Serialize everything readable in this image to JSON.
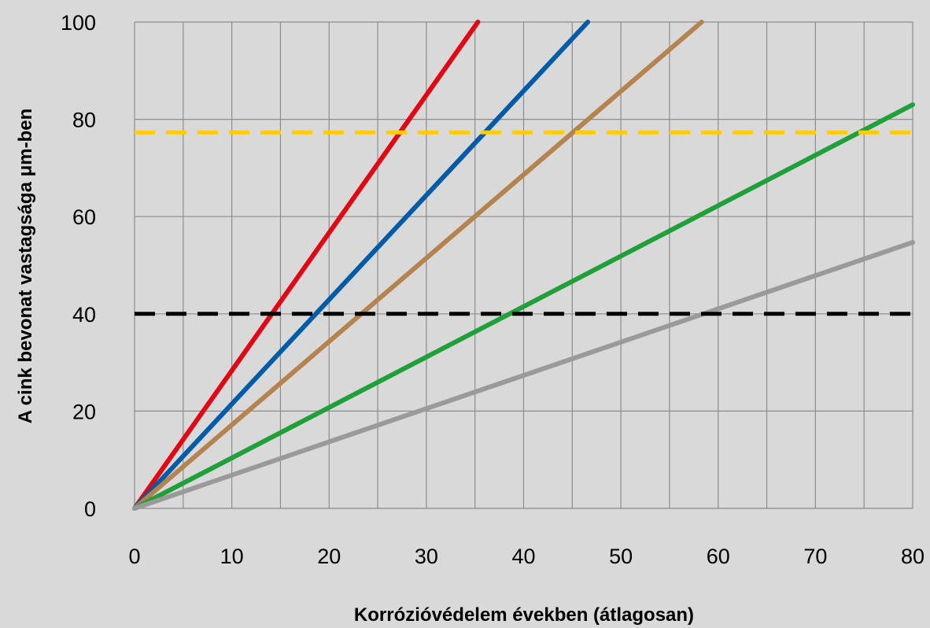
{
  "chart_data": {
    "type": "line",
    "title": "",
    "xlabel": "Korrózióvédelem években (átlagosan)",
    "ylabel": "A cink bevonat vastagsága μm-ben",
    "xlim": [
      0,
      80
    ],
    "ylim": [
      0,
      100
    ],
    "x_ticks": [
      0,
      10,
      20,
      30,
      40,
      50,
      60,
      70,
      80
    ],
    "y_ticks": [
      0,
      20,
      40,
      60,
      80,
      100
    ],
    "x_minor_step": 5,
    "grid": true,
    "legend": "none",
    "series": [
      {
        "color": "#e30613",
        "style": "solid",
        "x": [
          0,
          35.3
        ],
        "y": [
          0,
          100
        ]
      },
      {
        "color": "#005ca9",
        "style": "solid",
        "x": [
          0,
          46.6
        ],
        "y": [
          0,
          100
        ]
      },
      {
        "color": "#b5834e",
        "style": "solid",
        "x": [
          0,
          58.3
        ],
        "y": [
          0,
          100
        ]
      },
      {
        "color": "#1fa038",
        "style": "solid",
        "x": [
          0,
          80
        ],
        "y": [
          0,
          83
        ]
      },
      {
        "color": "#9a9a9a",
        "style": "solid",
        "x": [
          0,
          80
        ],
        "y": [
          0,
          54.7
        ]
      },
      {
        "color": "#ffcc00",
        "style": "dashed",
        "x": [
          0,
          80
        ],
        "y": [
          77.3,
          77.3
        ]
      },
      {
        "color": "#000000",
        "style": "dashed",
        "x": [
          0,
          80
        ],
        "y": [
          40,
          40
        ]
      }
    ]
  }
}
